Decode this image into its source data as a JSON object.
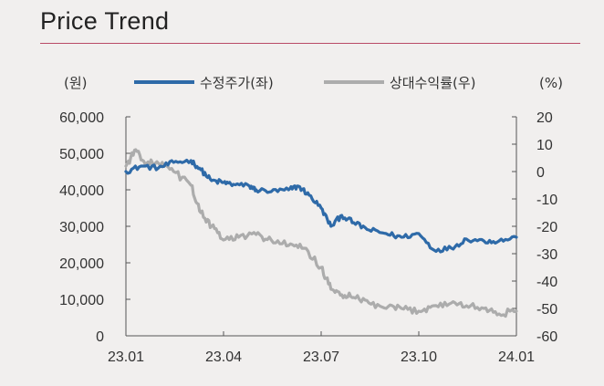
{
  "title": "Price Trend",
  "chart_data": {
    "type": "line",
    "title": "Price Trend",
    "left_axis": {
      "unit": "(원)",
      "range": [
        0,
        60000
      ],
      "ticks": [
        "0",
        "10,000",
        "20,000",
        "30,000",
        "40,000",
        "50,000",
        "60,000"
      ]
    },
    "right_axis": {
      "unit": "(%)",
      "range": [
        -60,
        20
      ],
      "ticks": [
        "-60",
        "-50",
        "-40",
        "-30",
        "-20",
        "-10",
        "0",
        "10",
        "20"
      ]
    },
    "x_axis": {
      "range": [
        "23.01",
        "24.01"
      ],
      "ticks": [
        "23.01",
        "23.04",
        "23.07",
        "23.10",
        "24.01"
      ]
    },
    "legend_placement": "top",
    "grid": false,
    "series": [
      {
        "name": "수정주가(좌)",
        "axis": "left",
        "color": "#2e6aa8",
        "points": [
          [
            "23.01",
            45000
          ],
          [
            "23.01.15",
            46500
          ],
          [
            "23.02",
            46000
          ],
          [
            "23.02.15",
            47500
          ],
          [
            "23.03",
            48000
          ],
          [
            "23.03.10",
            45500
          ],
          [
            "23.03.20",
            42500
          ],
          [
            "23.04",
            42000
          ],
          [
            "23.04.10",
            41500
          ],
          [
            "23.04.25",
            41000
          ],
          [
            "23.05",
            40000
          ],
          [
            "23.05.15",
            39500
          ],
          [
            "23.06",
            40000
          ],
          [
            "23.06.10",
            41000
          ],
          [
            "23.06.20",
            38500
          ],
          [
            "23.07",
            35000
          ],
          [
            "23.07.10",
            30000
          ],
          [
            "23.07.20",
            33000
          ],
          [
            "23.08",
            31000
          ],
          [
            "23.08.15",
            29000
          ],
          [
            "23.09",
            28000
          ],
          [
            "23.09.15",
            27000
          ],
          [
            "23.10",
            28000
          ],
          [
            "23.10.15",
            23500
          ],
          [
            "23.11",
            24000
          ],
          [
            "23.11.15",
            26500
          ],
          [
            "23.12",
            26000
          ],
          [
            "23.12.15",
            26000
          ],
          [
            "24.01",
            27000
          ]
        ]
      },
      {
        "name": "상대수익률(우)",
        "axis": "right",
        "color": "#acacac",
        "points": [
          [
            "23.01",
            2
          ],
          [
            "23.01.10",
            8
          ],
          [
            "23.01.20",
            3
          ],
          [
            "23.02",
            3
          ],
          [
            "23.02.15",
            0
          ],
          [
            "23.03",
            -5
          ],
          [
            "23.03.10",
            -15
          ],
          [
            "23.03.20",
            -20
          ],
          [
            "23.04",
            -25
          ],
          [
            "23.04.15",
            -24
          ],
          [
            "23.05",
            -23
          ],
          [
            "23.05.15",
            -25
          ],
          [
            "23.06",
            -27
          ],
          [
            "23.06.15",
            -28
          ],
          [
            "23.07",
            -35
          ],
          [
            "23.07.10",
            -43
          ],
          [
            "23.07.20",
            -45
          ],
          [
            "23.08",
            -46
          ],
          [
            "23.08.15",
            -48
          ],
          [
            "23.09",
            -50
          ],
          [
            "23.09.15",
            -50
          ],
          [
            "23.10",
            -51
          ],
          [
            "23.10.15",
            -49
          ],
          [
            "23.11",
            -48
          ],
          [
            "23.11.15",
            -49
          ],
          [
            "23.12",
            -50
          ],
          [
            "23.12.15",
            -52
          ],
          [
            "24.01",
            -51
          ]
        ]
      }
    ]
  }
}
